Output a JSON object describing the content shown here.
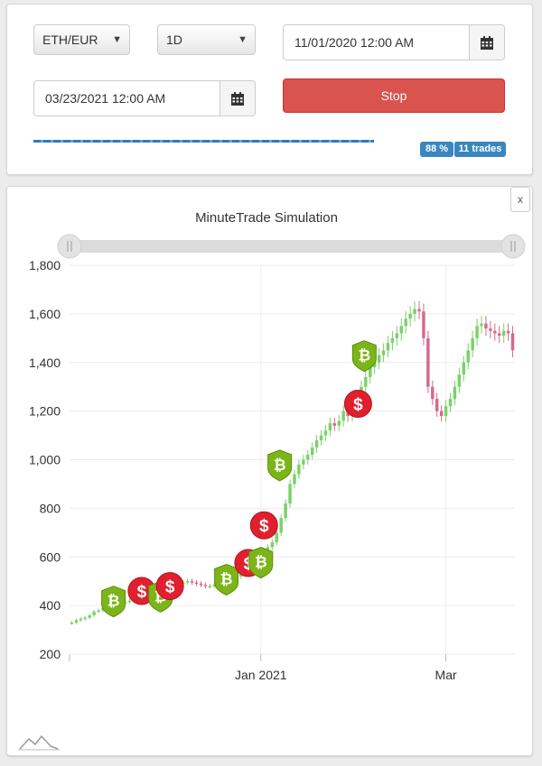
{
  "controls": {
    "pair": "ETH/EUR",
    "interval": "1D",
    "start_date": "11/01/2020 12:00 AM",
    "end_date": "03/23/2021 12:00 AM",
    "stop_label": "Stop",
    "progress_percent": 88,
    "progress_label": "88 %",
    "trades_label": "11 trades"
  },
  "chart_panel": {
    "close_label": "x"
  },
  "chart_data": {
    "type": "candlestick",
    "title": "MinuteTrade Simulation",
    "xlabel": "",
    "ylabel": "",
    "ylim": [
      200,
      1800
    ],
    "yticks": [
      200,
      400,
      600,
      800,
      1000,
      1200,
      1400,
      1600,
      1800
    ],
    "ytick_labels": [
      "200",
      "400",
      "600",
      "800",
      "1,000",
      "1,200",
      "1,400",
      "1,600",
      "1,800"
    ],
    "x_start": "2020-11-01",
    "x_end": "2021-03-23",
    "xticks": [
      {
        "date": "2021-01-01",
        "label": "Jan 2021"
      },
      {
        "date": "2021-03-01",
        "label": "Mar"
      }
    ],
    "grid": true,
    "colors": {
      "up": "#7bd16a",
      "down": "#d46a8a",
      "buy": "#7cb518",
      "sell": "#e0202f"
    },
    "close": [
      330,
      340,
      345,
      350,
      360,
      375,
      380,
      390,
      385,
      395,
      400,
      410,
      415,
      420,
      430,
      440,
      445,
      450,
      455,
      460,
      465,
      470,
      475,
      480,
      490,
      495,
      500,
      495,
      490,
      485,
      480,
      480,
      485,
      490,
      495,
      500,
      510,
      520,
      540,
      560,
      580,
      590,
      600,
      620,
      640,
      660,
      700,
      760,
      820,
      900,
      940,
      980,
      1000,
      1020,
      1050,
      1080,
      1100,
      1120,
      1150,
      1140,
      1160,
      1200,
      1180,
      1220,
      1240,
      1300,
      1340,
      1380,
      1400,
      1430,
      1450,
      1480,
      1500,
      1520,
      1550,
      1580,
      1600,
      1620,
      1610,
      1500,
      1300,
      1250,
      1200,
      1180,
      1220,
      1250,
      1300,
      1350,
      1400,
      1450,
      1500,
      1550,
      1560,
      1540,
      1530,
      1520,
      1510,
      1530,
      1520,
      1450
    ],
    "trades": [
      {
        "type": "buy",
        "date": "2020-11-15",
        "price": 420
      },
      {
        "type": "sell",
        "date": "2020-11-24",
        "price": 460
      },
      {
        "type": "buy",
        "date": "2020-11-30",
        "price": 440
      },
      {
        "type": "sell",
        "date": "2020-12-03",
        "price": 480
      },
      {
        "type": "buy",
        "date": "2020-12-21",
        "price": 510
      },
      {
        "type": "sell",
        "date": "2020-12-28",
        "price": 575
      },
      {
        "type": "buy",
        "date": "2021-01-01",
        "price": 580
      },
      {
        "type": "sell",
        "date": "2021-01-02",
        "price": 730
      },
      {
        "type": "buy",
        "date": "2021-01-07",
        "price": 980
      },
      {
        "type": "sell",
        "date": "2021-02-01",
        "price": 1230
      },
      {
        "type": "buy",
        "date": "2021-02-03",
        "price": 1430
      }
    ]
  }
}
